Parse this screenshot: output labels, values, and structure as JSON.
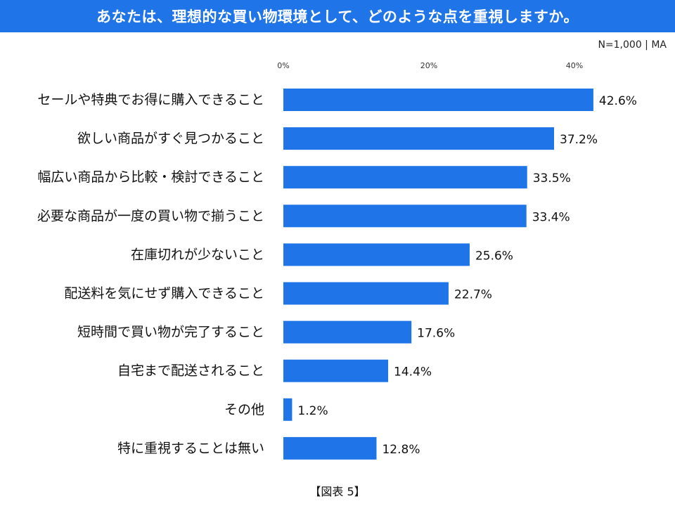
{
  "header": {
    "title": "あなたは、理想的な買い物環境として、どのような点を重視しますか。"
  },
  "meta": {
    "sample_note": "N=1,000 | MA",
    "figure_label": "【図表 5】"
  },
  "colors": {
    "bar": "#1f74e8",
    "title_bg": "#1f74e8"
  },
  "chart_data": {
    "type": "bar",
    "orientation": "horizontal",
    "categories": [
      "セールや特典でお得に購入できること",
      "欲しい商品がすぐ見つかること",
      "幅広い商品から比較・検討できること",
      "必要な商品が一度の買い物で揃うこと",
      "在庫切れが少ないこと",
      "配送料を気にせず購入できること",
      "短時間で買い物が完了すること",
      "自宅まで配送されること",
      "その他",
      "特に重視することは無い"
    ],
    "values": [
      42.6,
      37.2,
      33.5,
      33.4,
      25.6,
      22.7,
      17.6,
      14.4,
      1.2,
      12.8
    ],
    "value_labels": [
      "42.6%",
      "37.2%",
      "33.5%",
      "33.4%",
      "25.6%",
      "22.7%",
      "17.6%",
      "14.4%",
      "1.2%",
      "12.8%"
    ],
    "x_ticks": [
      0,
      20,
      40
    ],
    "x_tick_labels": [
      "0%",
      "20%",
      "40%"
    ],
    "xlim": [
      0,
      50
    ],
    "grid": false,
    "legend": "none"
  }
}
